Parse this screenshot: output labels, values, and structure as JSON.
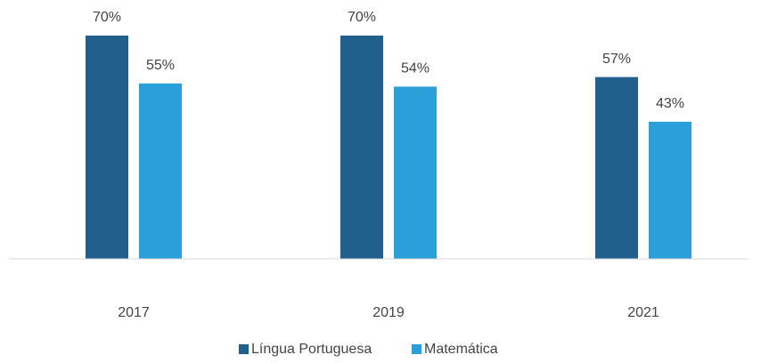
{
  "chart_data": {
    "type": "bar",
    "categories": [
      "2017",
      "2019",
      "2021"
    ],
    "series": [
      {
        "name": "Língua Portuguesa",
        "color": "#215f8d",
        "values": [
          70,
          70,
          57
        ],
        "value_labels": [
          "70%",
          "70%",
          "57%"
        ]
      },
      {
        "name": "Matemática",
        "color": "#2b9fd9",
        "values": [
          55,
          54,
          43
        ],
        "value_labels": [
          "55%",
          "54%",
          "43%"
        ]
      }
    ]
  }
}
